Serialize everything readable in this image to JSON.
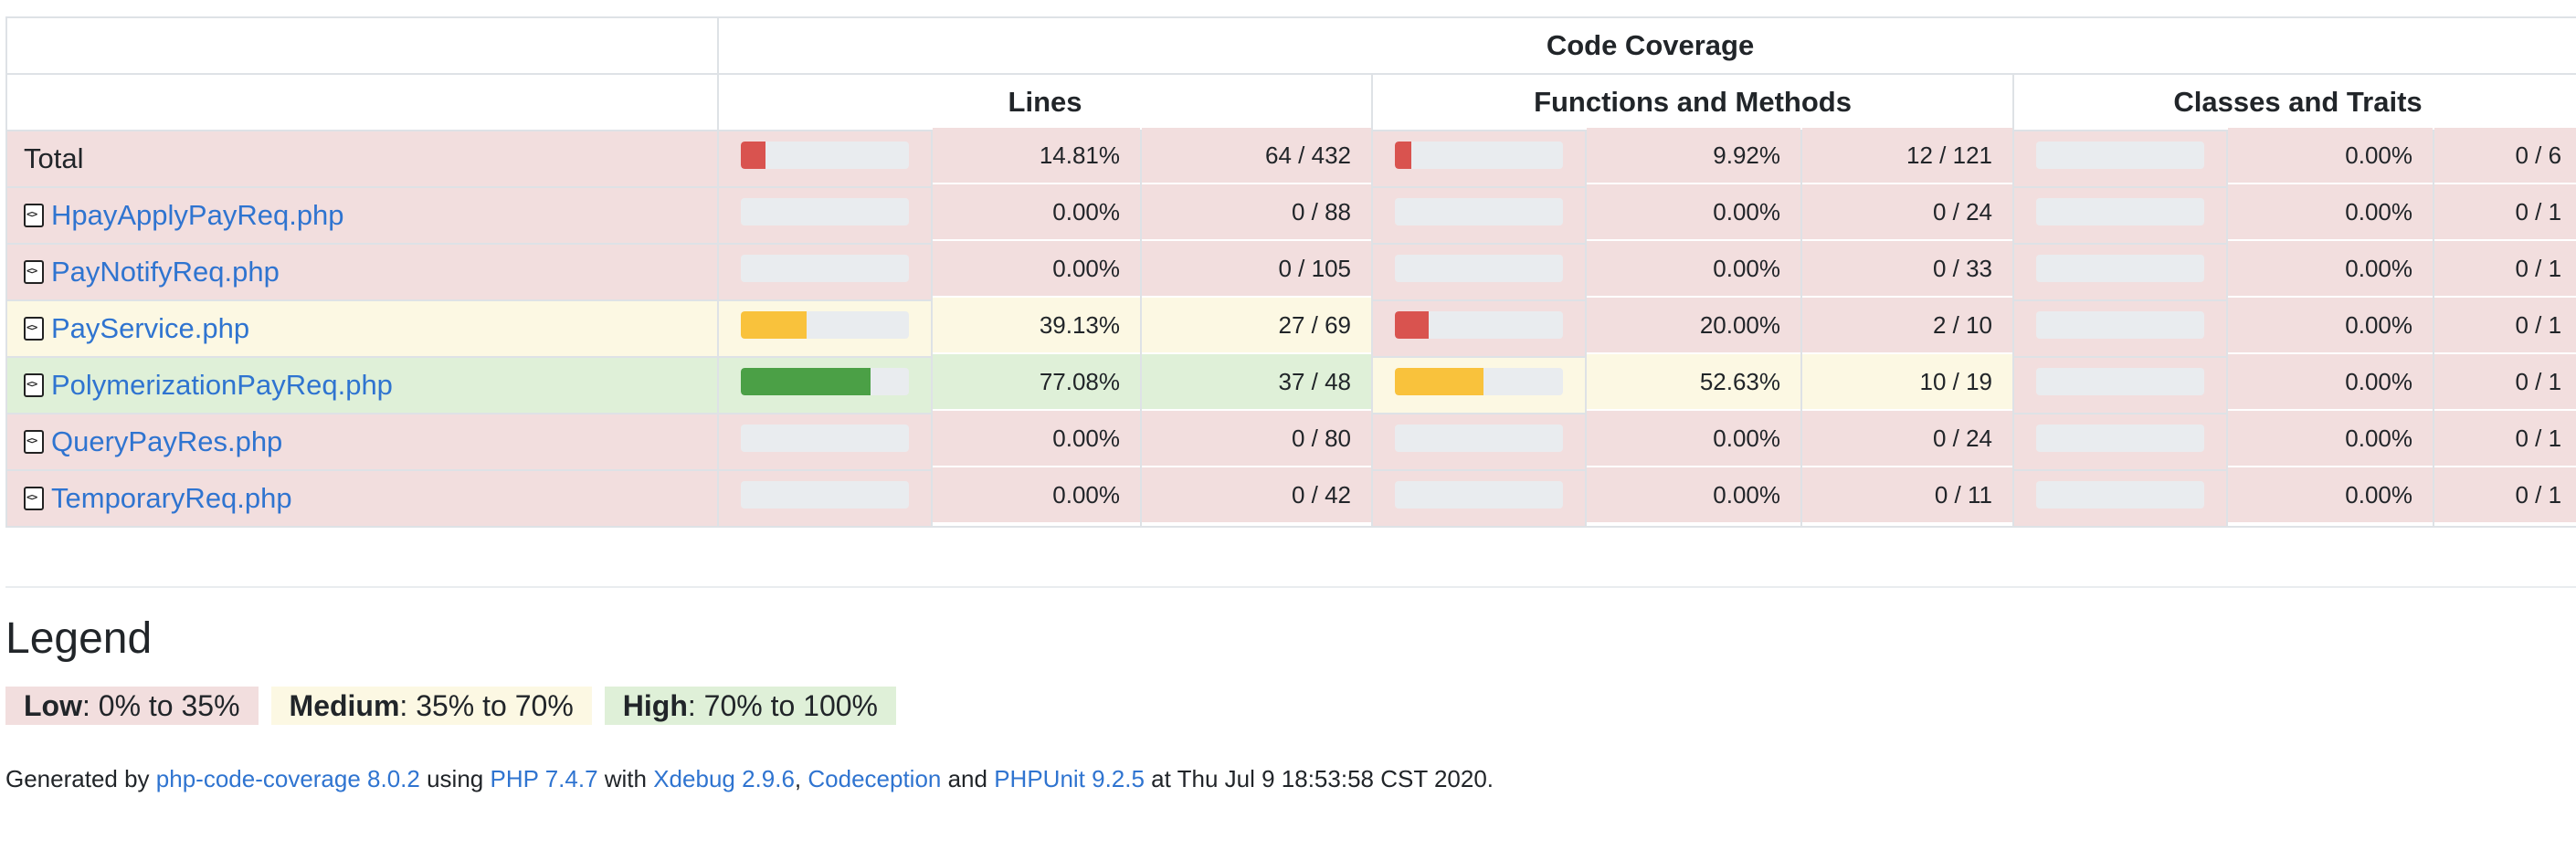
{
  "header": {
    "group_title": "Code Coverage",
    "columns": [
      "Lines",
      "Functions and Methods",
      "Classes and Traits"
    ]
  },
  "rows": [
    {
      "name": "Total",
      "is_link": false,
      "level": "low",
      "lines": {
        "pct": "14.81%",
        "count": "64 / 432",
        "fill": 14.81,
        "level": "low"
      },
      "functions": {
        "pct": "9.92%",
        "count": "12 / 121",
        "fill": 9.92,
        "level": "low"
      },
      "classes": {
        "pct": "0.00%",
        "count": "0 / 6",
        "fill": 0,
        "level": "low"
      }
    },
    {
      "name": "HpayApplyPayReq.php",
      "is_link": true,
      "level": "low",
      "lines": {
        "pct": "0.00%",
        "count": "0 / 88",
        "fill": 0,
        "level": "low"
      },
      "functions": {
        "pct": "0.00%",
        "count": "0 / 24",
        "fill": 0,
        "level": "low"
      },
      "classes": {
        "pct": "0.00%",
        "count": "0 / 1",
        "fill": 0,
        "level": "low"
      }
    },
    {
      "name": "PayNotifyReq.php",
      "is_link": true,
      "level": "low",
      "lines": {
        "pct": "0.00%",
        "count": "0 / 105",
        "fill": 0,
        "level": "low"
      },
      "functions": {
        "pct": "0.00%",
        "count": "0 / 33",
        "fill": 0,
        "level": "low"
      },
      "classes": {
        "pct": "0.00%",
        "count": "0 / 1",
        "fill": 0,
        "level": "low"
      }
    },
    {
      "name": "PayService.php",
      "is_link": true,
      "level": "medium",
      "lines": {
        "pct": "39.13%",
        "count": "27 / 69",
        "fill": 39.13,
        "level": "medium"
      },
      "functions": {
        "pct": "20.00%",
        "count": "2 / 10",
        "fill": 20,
        "level": "low"
      },
      "classes": {
        "pct": "0.00%",
        "count": "0 / 1",
        "fill": 0,
        "level": "low"
      }
    },
    {
      "name": "PolymerizationPayReq.php",
      "is_link": true,
      "level": "high",
      "lines": {
        "pct": "77.08%",
        "count": "37 / 48",
        "fill": 77.08,
        "level": "high"
      },
      "functions": {
        "pct": "52.63%",
        "count": "10 / 19",
        "fill": 52.63,
        "level": "medium"
      },
      "classes": {
        "pct": "0.00%",
        "count": "0 / 1",
        "fill": 0,
        "level": "low"
      }
    },
    {
      "name": "QueryPayRes.php",
      "is_link": true,
      "level": "low",
      "lines": {
        "pct": "0.00%",
        "count": "0 / 80",
        "fill": 0,
        "level": "low"
      },
      "functions": {
        "pct": "0.00%",
        "count": "0 / 24",
        "fill": 0,
        "level": "low"
      },
      "classes": {
        "pct": "0.00%",
        "count": "0 / 1",
        "fill": 0,
        "level": "low"
      }
    },
    {
      "name": "TemporaryReq.php",
      "is_link": true,
      "level": "low",
      "lines": {
        "pct": "0.00%",
        "count": "0 / 42",
        "fill": 0,
        "level": "low"
      },
      "functions": {
        "pct": "0.00%",
        "count": "0 / 11",
        "fill": 0,
        "level": "low"
      },
      "classes": {
        "pct": "0.00%",
        "count": "0 / 1",
        "fill": 0,
        "level": "low"
      }
    }
  ],
  "legend": {
    "title": "Legend",
    "items": [
      {
        "label": "Low",
        "range": ": 0% to 35%",
        "color": "#f2dede"
      },
      {
        "label": "Medium",
        "range": ": 35% to 70%",
        "color": "#fcf8e3"
      },
      {
        "label": "High",
        "range": ": 70% to 100%",
        "color": "#dff0d8"
      }
    ]
  },
  "footer": {
    "t1": "Generated by ",
    "l1": "php-code-coverage 8.0.2",
    "t2": " using ",
    "l2": "PHP 7.4.7",
    "t3": " with ",
    "l3": "Xdebug 2.9.6",
    "t4": ", ",
    "l4": "Codeception",
    "t5": " and ",
    "l5": "PHPUnit 9.2.5",
    "t6": " at Thu Jul 9 18:53:58 CST 2020."
  },
  "colors": {
    "low_bg": "#f2dede",
    "medium_bg": "#fcf8e3",
    "high_bg": "#dff0d8",
    "low_bar": "#d9534f",
    "medium_bar": "#f9c23c",
    "high_bar": "#4ba046",
    "link": "#2f74d0"
  }
}
